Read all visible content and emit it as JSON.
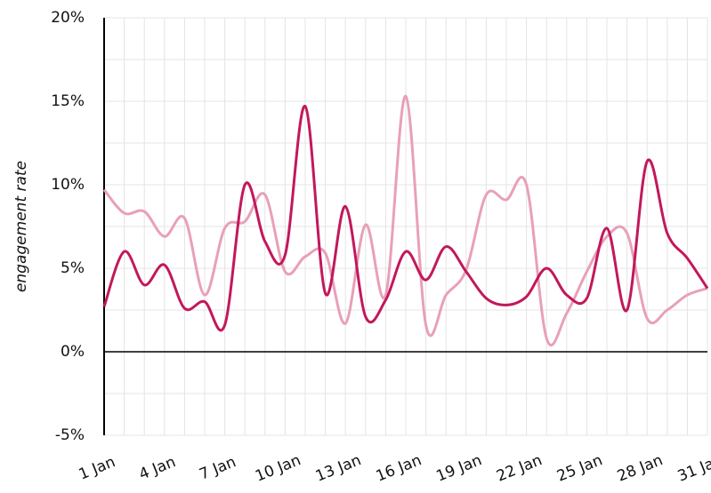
{
  "chart_data": {
    "type": "line",
    "y_label": "engagement rate",
    "categories": [
      "1 Jan",
      null,
      null,
      "4 Jan",
      null,
      null,
      "7 Jan",
      null,
      null,
      "10 Jan",
      null,
      null,
      "13 Jan",
      null,
      null,
      "16 Jan",
      null,
      null,
      "19 Jan",
      null,
      null,
      "22 Jan",
      null,
      null,
      "25 Jan",
      null,
      null,
      "28 Jan",
      null,
      null,
      "31 Jan"
    ],
    "series": [
      {
        "color": "#c2185b",
        "values": [
          2.7,
          6.0,
          4.0,
          5.2,
          2.6,
          3.0,
          1.6,
          10.0,
          6.6,
          5.8,
          14.7,
          3.5,
          8.7,
          2.1,
          3.1,
          6.0,
          4.3,
          6.3,
          4.8,
          3.2,
          2.8,
          3.3,
          5.0,
          3.4,
          3.2,
          7.4,
          2.5,
          11.4,
          7.1,
          5.6,
          3.8
        ]
      },
      {
        "color": "#e8a0b8",
        "values": [
          9.7,
          8.3,
          8.4,
          6.9,
          8.0,
          3.4,
          7.4,
          7.8,
          9.4,
          4.8,
          5.7,
          5.9,
          1.7,
          7.6,
          3.4,
          15.3,
          1.6,
          3.4,
          4.9,
          9.4,
          9.1,
          10.0,
          0.8,
          2.3,
          4.8,
          6.9,
          7.1,
          2.0,
          2.5,
          3.4,
          3.8
        ]
      }
    ],
    "ylim": [
      -5,
      20
    ],
    "yticks": [
      {
        "value": -5,
        "label": "-5%"
      },
      {
        "value": 0,
        "label": "0%"
      },
      {
        "value": 5,
        "label": "5%"
      },
      {
        "value": 10,
        "label": "10%"
      },
      {
        "value": 15,
        "label": "15%"
      },
      {
        "value": 20,
        "label": "20%"
      }
    ],
    "minor_yticks": [
      -2.5,
      2.5,
      7.5,
      12.5,
      17.5
    ],
    "grid": true
  }
}
